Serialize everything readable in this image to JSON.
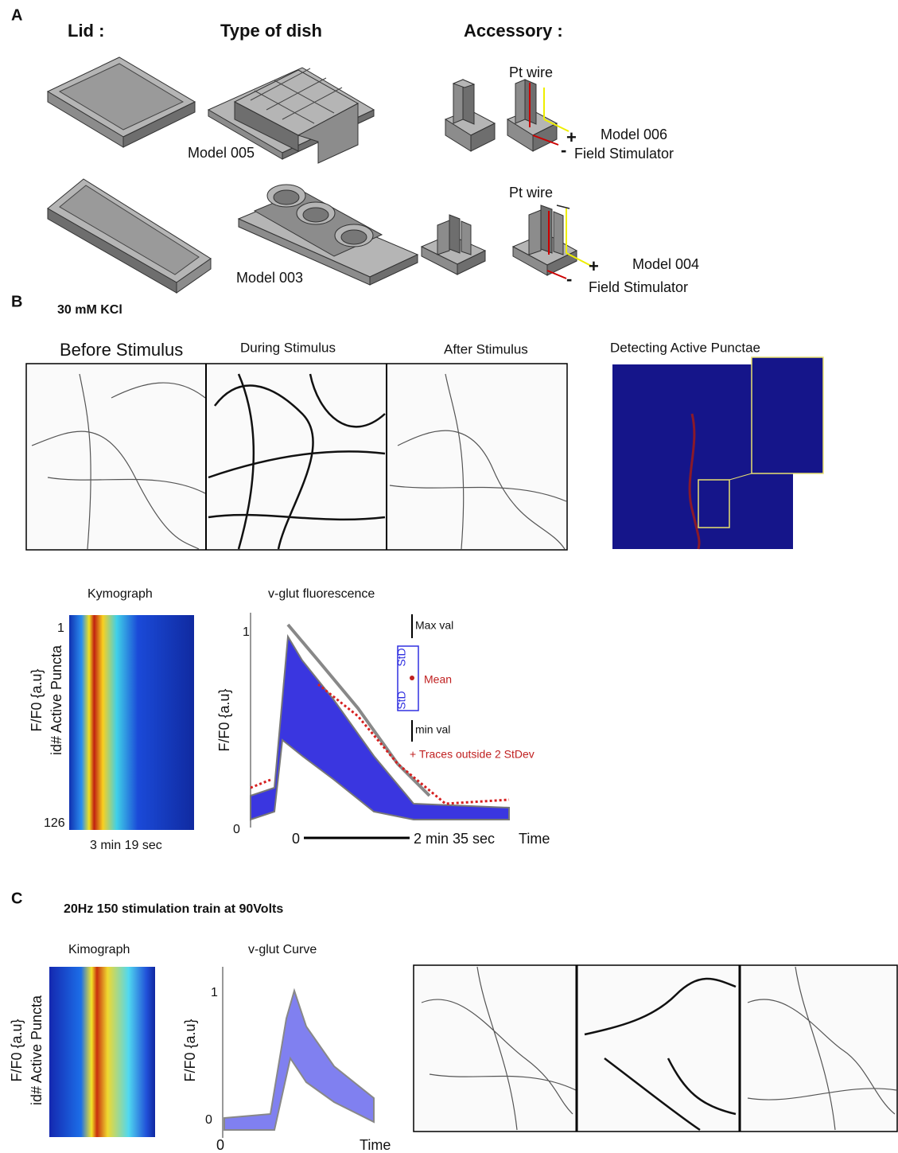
{
  "panel_a": {
    "label": "A",
    "headers": [
      "Lid :",
      "Type of dish",
      "Accessory :"
    ],
    "row_1": {
      "dish": "Model 005",
      "wire": "Pt wire",
      "plus": "+",
      "minus": "-",
      "model": "Model 006",
      "device": "Field Stimulator"
    },
    "row_2": {
      "dish": "Model 003",
      "wire": "Pt wire",
      "plus": "+",
      "minus": "-",
      "model": "Model 004",
      "device": "Field Stimulator"
    }
  },
  "panel_b": {
    "label": "B",
    "title": "30 mM KCl",
    "image_titles": [
      "Before Stimulus",
      "During Stimulus",
      "After Stimulus",
      "Detecting Active Punctae"
    ],
    "kymograph": {
      "title": "Kymograph",
      "top": "1",
      "bottom": "126",
      "ylabel": "F/F0 {a.u}",
      "ylabel_2": "id# Active Puncta",
      "xlabel": "3 min 19 sec"
    },
    "curve": {
      "title": "v-glut fluorescence",
      "tick_top": "1",
      "tick_bottom": "0",
      "ylabel": "F/F0 {a.u}",
      "legend": {
        "max": "Max val",
        "std_1": "StD",
        "std_2": "StD",
        "mean": "Mean",
        "min": "min val",
        "outliers": "+ Traces outside 2 StDev"
      },
      "scale_start": "0",
      "scale_end": "2 min 35 sec",
      "xlabel": "Time"
    }
  },
  "panel_c": {
    "label": "C",
    "title": "20Hz 150 stimulation train at 90Volts",
    "kymograph": {
      "title": "Kimograph",
      "ylabel": "F/F0 {a.u}",
      "ylabel_2": "id# Active Puncta"
    },
    "curve": {
      "title": "v-glut Curve",
      "tick_top": "1",
      "tick_bottom": "0",
      "ylabel": "F/F0 {a.u}",
      "x_start": "0",
      "xlabel": "Time"
    }
  }
}
